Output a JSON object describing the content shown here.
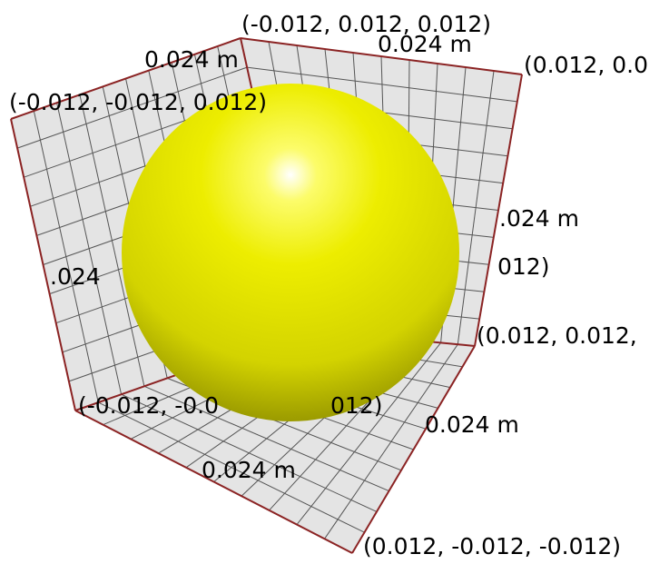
{
  "colors": {
    "background": "#ffffff",
    "panel_fill": "#e4e4e4",
    "grid_line": "#555555",
    "frame_edge": "#8b2323",
    "sphere_base": "#e8e800",
    "sphere_highlight": "#ffffff",
    "sphere_shadow": "#8a8a00"
  },
  "labels": {
    "corner_top_back": "(-0.012, 0.012, 0.012)",
    "corner_top_right": "(0.012, 0.0",
    "corner_top_left": "(-0.012, -0.012, 0.012)",
    "corner_right_mid": "(0.012, 0.012,",
    "corner_bottom_left": "(-0.012, -0.0",
    "corner_bottom_left_tail": "012)",
    "corner_bottom_right": "(0.012, -0.012, -0.012)",
    "right_partial": "012)",
    "dim_top_back": "0.024 m",
    "dim_top_left": "0.024 m",
    "dim_right": ".024 m",
    "dim_left": ".024",
    "dim_bottom": "0.024 m",
    "dim_bottom_right": "0.024 m"
  }
}
